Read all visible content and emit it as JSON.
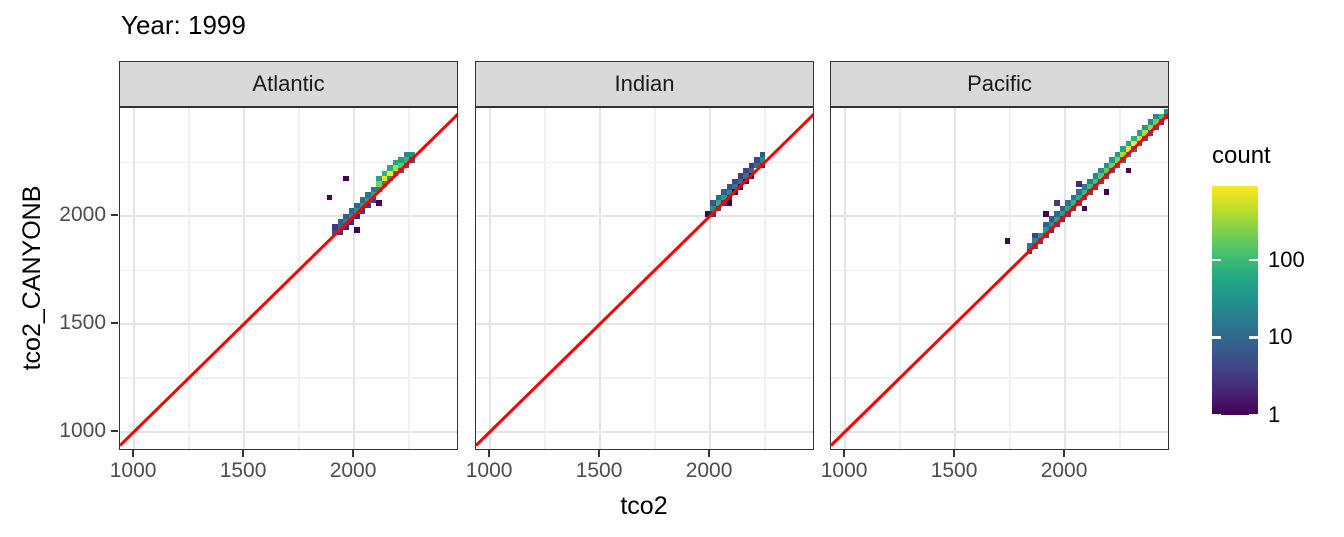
{
  "chart_data": {
    "type": "heatmap",
    "subtype": "binned-2d-density-faceted-scatter",
    "title": "Year: 1999",
    "xlabel": "tco2",
    "ylabel": "tco2_CANYONB",
    "x_ticks": [
      1000,
      1500,
      2000
    ],
    "y_ticks": [
      1000,
      1500,
      2000
    ],
    "x_minor": [
      1250,
      1750,
      2250
    ],
    "y_minor": [
      1250,
      1750,
      2250
    ],
    "x_domain": [
      936,
      2477
    ],
    "y_domain": [
      912,
      2502
    ],
    "binwidth": 25,
    "grid": "on",
    "identity_line": {
      "slope": 1,
      "intercept": 0,
      "color": "#fb0000"
    },
    "legend": {
      "title": "count",
      "scale": "log10",
      "ticks": [
        100,
        10,
        1
      ],
      "max": 900,
      "position": "right",
      "viridis": [
        "#440154",
        "#482475",
        "#414487",
        "#355f8d",
        "#2a788e",
        "#21918c",
        "#22a884",
        "#44bf70",
        "#7ad151",
        "#bddf26",
        "#fde725"
      ]
    },
    "facets": [
      {
        "label": "Atlantic",
        "bins": [
          [
            1912,
            1925,
            5
          ],
          [
            1912,
            1950,
            3
          ],
          [
            1937,
            1950,
            12
          ],
          [
            1937,
            1975,
            8
          ],
          [
            1937,
            1925,
            2
          ],
          [
            1962,
            1975,
            20
          ],
          [
            1962,
            2000,
            7
          ],
          [
            1962,
            1950,
            2
          ],
          [
            1987,
            2000,
            28
          ],
          [
            1987,
            2025,
            9
          ],
          [
            1987,
            1975,
            2
          ],
          [
            2012,
            2025,
            34
          ],
          [
            2012,
            2050,
            10
          ],
          [
            2012,
            2000,
            2
          ],
          [
            2012,
            1937,
            1
          ],
          [
            2037,
            2050,
            40
          ],
          [
            2037,
            2075,
            12
          ],
          [
            2037,
            2025,
            3
          ],
          [
            2062,
            2075,
            48
          ],
          [
            2062,
            2100,
            14
          ],
          [
            2062,
            2050,
            3
          ],
          [
            2087,
            2100,
            62
          ],
          [
            2087,
            2125,
            16
          ],
          [
            2087,
            2075,
            4
          ],
          [
            2112,
            2150,
            210
          ],
          [
            2112,
            2175,
            55
          ],
          [
            2112,
            2125,
            18
          ],
          [
            2112,
            2062,
            1
          ],
          [
            2137,
            2175,
            720
          ],
          [
            2137,
            2200,
            85
          ],
          [
            2137,
            2150,
            22
          ],
          [
            2162,
            2200,
            860
          ],
          [
            2162,
            2225,
            65
          ],
          [
            2162,
            2175,
            28
          ],
          [
            2187,
            2225,
            420
          ],
          [
            2187,
            2250,
            55
          ],
          [
            2187,
            2200,
            18
          ],
          [
            2212,
            2237,
            160
          ],
          [
            2212,
            2262,
            45
          ],
          [
            2212,
            2212,
            10
          ],
          [
            2237,
            2262,
            85
          ],
          [
            2237,
            2287,
            25
          ],
          [
            2237,
            2237,
            7
          ],
          [
            2262,
            2287,
            32
          ],
          [
            2262,
            2262,
            6
          ],
          [
            1962,
            2175,
            1
          ],
          [
            1887,
            2087,
            1
          ]
        ]
      },
      {
        "label": "Indian",
        "bins": [
          [
            2012,
            2037,
            30
          ],
          [
            2012,
            2062,
            6
          ],
          [
            2012,
            2012,
            3
          ],
          [
            2037,
            2062,
            70
          ],
          [
            2037,
            2087,
            10
          ],
          [
            2037,
            2037,
            4
          ],
          [
            2062,
            2087,
            45
          ],
          [
            2062,
            2112,
            8
          ],
          [
            2062,
            2062,
            3
          ],
          [
            2087,
            2112,
            25
          ],
          [
            2087,
            2137,
            5
          ],
          [
            2087,
            2087,
            2
          ],
          [
            2112,
            2137,
            15
          ],
          [
            2112,
            2162,
            4
          ],
          [
            2112,
            2112,
            1
          ],
          [
            2137,
            2162,
            12
          ],
          [
            2137,
            2187,
            3
          ],
          [
            2137,
            2137,
            1
          ],
          [
            2162,
            2187,
            15
          ],
          [
            2162,
            2212,
            4
          ],
          [
            2187,
            2212,
            10
          ],
          [
            2187,
            2237,
            3
          ],
          [
            2187,
            2187,
            1
          ],
          [
            2212,
            2237,
            12
          ],
          [
            2212,
            2262,
            4
          ],
          [
            2237,
            2262,
            30
          ],
          [
            2237,
            2287,
            6
          ],
          [
            2237,
            2237,
            2
          ],
          [
            1987,
            2012,
            1
          ],
          [
            2087,
            2062,
            1
          ],
          [
            2162,
            2162,
            1
          ]
        ]
      },
      {
        "label": "Pacific",
        "bins": [
          [
            1837,
            1862,
            15
          ],
          [
            1837,
            1837,
            3
          ],
          [
            1862,
            1887,
            25
          ],
          [
            1862,
            1862,
            6
          ],
          [
            1862,
            1912,
            4
          ],
          [
            1887,
            1912,
            30
          ],
          [
            1887,
            1887,
            5
          ],
          [
            1912,
            1937,
            40
          ],
          [
            1912,
            1962,
            8
          ],
          [
            1912,
            1912,
            4
          ],
          [
            1937,
            1962,
            35
          ],
          [
            1937,
            1987,
            6
          ],
          [
            1937,
            1937,
            3
          ],
          [
            1962,
            1987,
            50
          ],
          [
            1962,
            2012,
            10
          ],
          [
            1962,
            1962,
            4
          ],
          [
            1962,
            2062,
            3
          ],
          [
            1987,
            2012,
            45
          ],
          [
            1987,
            2037,
            8
          ],
          [
            1987,
            1987,
            3
          ],
          [
            2012,
            2037,
            60
          ],
          [
            2012,
            2062,
            12
          ],
          [
            2012,
            2012,
            4
          ],
          [
            2037,
            2062,
            80
          ],
          [
            2037,
            2087,
            15
          ],
          [
            2037,
            2037,
            5
          ],
          [
            2062,
            2087,
            70
          ],
          [
            2062,
            2112,
            12
          ],
          [
            2062,
            2062,
            4
          ],
          [
            2062,
            2150,
            2
          ],
          [
            2087,
            2112,
            90
          ],
          [
            2087,
            2137,
            15
          ],
          [
            2087,
            2087,
            5
          ],
          [
            2087,
            2037,
            1
          ],
          [
            2112,
            2137,
            100
          ],
          [
            2112,
            2162,
            20
          ],
          [
            2112,
            2112,
            6
          ],
          [
            2137,
            2162,
            120
          ],
          [
            2137,
            2187,
            25
          ],
          [
            2137,
            2137,
            6
          ],
          [
            2162,
            2187,
            150
          ],
          [
            2162,
            2212,
            25
          ],
          [
            2162,
            2162,
            8
          ],
          [
            2187,
            2212,
            180
          ],
          [
            2187,
            2237,
            30
          ],
          [
            2187,
            2187,
            8
          ],
          [
            2187,
            2112,
            1
          ],
          [
            2212,
            2237,
            200
          ],
          [
            2212,
            2262,
            35
          ],
          [
            2212,
            2212,
            10
          ],
          [
            2237,
            2262,
            250
          ],
          [
            2237,
            2287,
            40
          ],
          [
            2237,
            2237,
            10
          ],
          [
            2262,
            2287,
            350
          ],
          [
            2262,
            2312,
            50
          ],
          [
            2262,
            2262,
            12
          ],
          [
            2287,
            2312,
            700
          ],
          [
            2287,
            2337,
            60
          ],
          [
            2287,
            2287,
            15
          ],
          [
            2287,
            2212,
            1
          ],
          [
            2312,
            2337,
            850
          ],
          [
            2312,
            2362,
            70
          ],
          [
            2312,
            2312,
            15
          ],
          [
            2337,
            2362,
            600
          ],
          [
            2337,
            2387,
            50
          ],
          [
            2337,
            2337,
            12
          ],
          [
            2362,
            2387,
            400
          ],
          [
            2362,
            2412,
            40
          ],
          [
            2362,
            2362,
            10
          ],
          [
            2387,
            2412,
            300
          ],
          [
            2387,
            2437,
            30
          ],
          [
            2387,
            2387,
            8
          ],
          [
            2412,
            2437,
            200
          ],
          [
            2412,
            2462,
            25
          ],
          [
            2412,
            2412,
            6
          ],
          [
            2437,
            2462,
            100
          ],
          [
            2437,
            2437,
            5
          ],
          [
            2462,
            2487,
            40
          ],
          [
            2462,
            2462,
            4
          ],
          [
            1737,
            1887,
            1
          ],
          [
            1912,
            2012,
            1
          ]
        ]
      }
    ]
  },
  "theme": {
    "strip_bg": "#d9d9d9",
    "panel_border": "#333333",
    "grid_major": "#e4e4e4",
    "grid_minor": "#f0f0f0",
    "tick_label_color": "#4d4d4d",
    "tick_mark_color": "#333333",
    "legend_tick_color": "#ffffff"
  }
}
